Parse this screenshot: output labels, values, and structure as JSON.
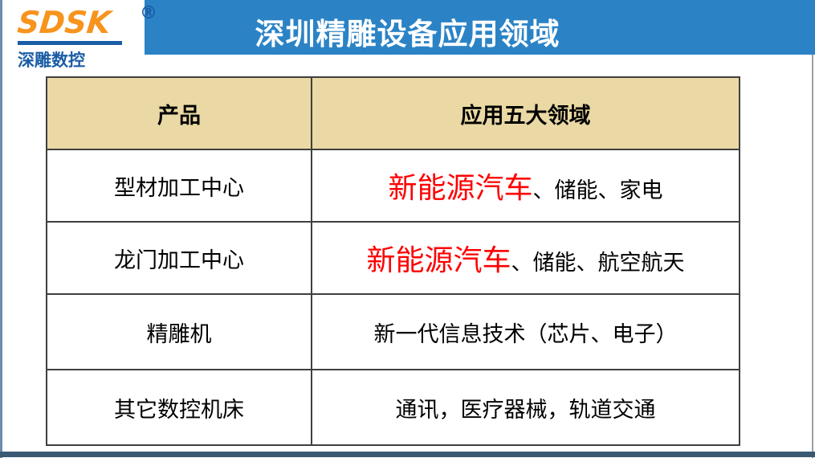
{
  "logo": {
    "brand": "SDSK",
    "registered_mark": "®",
    "subtitle": "深雕数控",
    "brand_color": "#F7941E",
    "subtitle_color": "#1A5DA6"
  },
  "header": {
    "title": "深圳精雕设备应用领域",
    "banner_color": "#2B83C6",
    "title_color": "#FFFFFF"
  },
  "table": {
    "columns": [
      "产品",
      "应用五大领域"
    ],
    "header_bg": "#EAD9A4",
    "border_color": "#3F3F3F",
    "highlight_color": "#FE0000",
    "rows": [
      {
        "product": "型材加工中心",
        "highlight": "新能源汽车",
        "rest": "、储能、家电"
      },
      {
        "product": "龙门加工中心",
        "highlight": "新能源汽车",
        "rest": "、储能、航空航天"
      },
      {
        "product": "精雕机",
        "highlight": "",
        "rest": "新一代信息技术（芯片、电子）"
      },
      {
        "product": "其它数控机床",
        "highlight": "",
        "rest": "通讯，医疗器械，轨道交通"
      }
    ]
  },
  "footer": {
    "bar_color": "#3A5A74"
  }
}
